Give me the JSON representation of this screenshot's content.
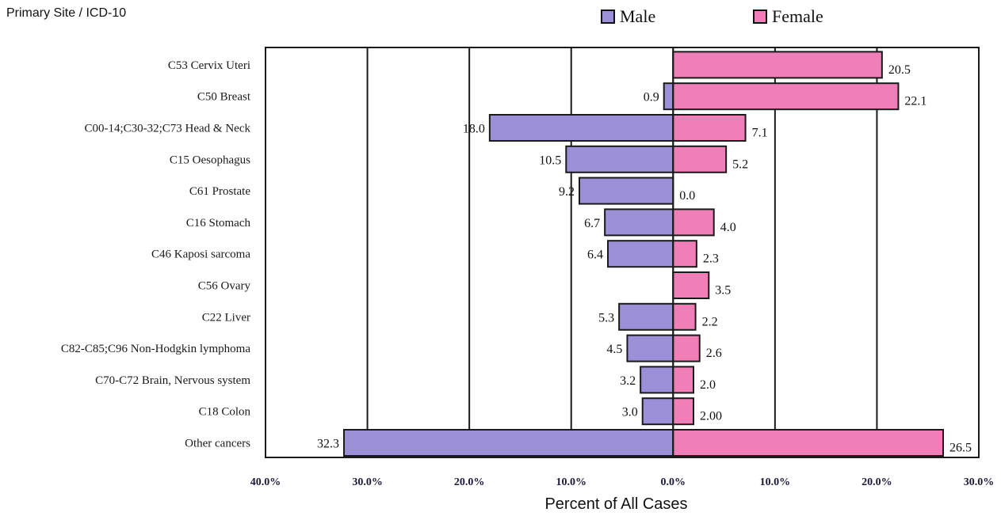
{
  "header": {
    "title": "Primary Site / ICD-10"
  },
  "legend": {
    "male": "Male",
    "female": "Female"
  },
  "colors": {
    "male": "#9b8fd8",
    "female": "#f07fb8",
    "stroke": "#1a1a1a"
  },
  "chart_data": {
    "type": "bar",
    "orientation": "horizontal-diverging",
    "xlabel": "Percent of All Cases",
    "ylabel": "Primary Site / ICD-10",
    "xlim": [
      -40,
      30
    ],
    "xticks": [
      -40,
      -30,
      -20,
      -10,
      0,
      10,
      20,
      30
    ],
    "tick_labels": [
      "40.0%",
      "30.0%",
      "20.0%",
      "10.0%",
      "0.0%",
      "10.0%",
      "20.0%",
      "30.0%"
    ],
    "grid": "vertical",
    "legend_position": "top-right",
    "categories": [
      "C53 Cervix Uteri",
      "C50 Breast",
      "C00-14;C30-32;C73 Head & Neck",
      "C15 Oesophagus",
      "C61 Prostate",
      "C16 Stomach",
      "C46 Kaposi sarcoma",
      "C56 Ovary",
      "C22 Liver",
      "C82-C85;C96 Non-Hodgkin lymphoma",
      "C70-C72 Brain, Nervous system",
      "C18 Colon",
      "Other cancers"
    ],
    "series": [
      {
        "name": "Male",
        "values": [
          null,
          0.9,
          18.0,
          10.5,
          9.2,
          6.7,
          6.4,
          null,
          5.3,
          4.5,
          3.2,
          3.0,
          32.3
        ],
        "labels": [
          "",
          "0.9",
          "18.0",
          "10.5",
          "9.2",
          "6.7",
          "6.4",
          "",
          "5.3",
          "4.5",
          "3.2",
          "3.0",
          "32.3"
        ]
      },
      {
        "name": "Female",
        "values": [
          20.5,
          22.1,
          7.1,
          5.2,
          0.0,
          4.0,
          2.3,
          3.5,
          2.2,
          2.6,
          2.0,
          2.0,
          26.5
        ],
        "labels": [
          "20.5",
          "22.1",
          "7.1",
          "5.2",
          "0.0",
          "4.0",
          "2.3",
          "3.5",
          "2.2",
          "2.6",
          "2.0",
          "2.00",
          "26.5"
        ]
      }
    ]
  }
}
